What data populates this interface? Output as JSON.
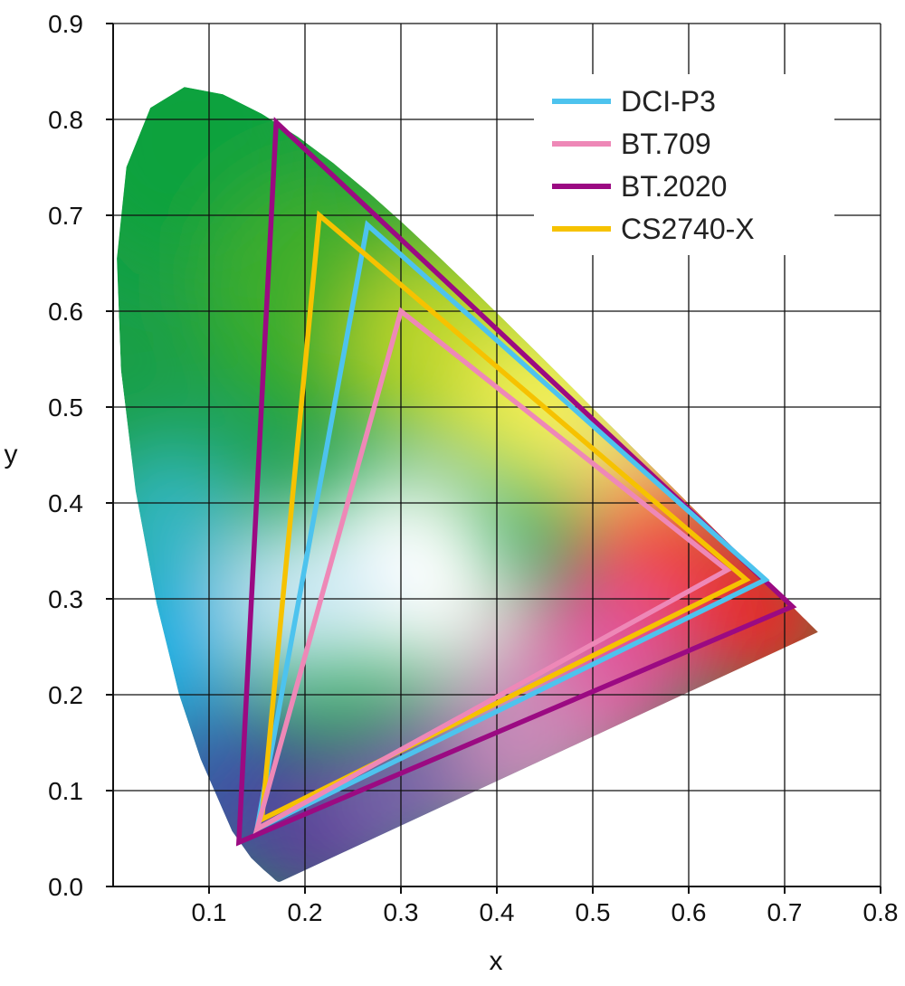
{
  "chart_data": {
    "type": "chromaticity-diagram",
    "xlabel": "x",
    "ylabel": "y",
    "xlim": [
      0,
      0.8
    ],
    "ylim": [
      0,
      0.9
    ],
    "x_ticks": [
      "0.1",
      "0.2",
      "0.3",
      "0.4",
      "0.5",
      "0.6",
      "0.7",
      "0.8"
    ],
    "y_ticks": [
      "0.0",
      "0.1",
      "0.2",
      "0.3",
      "0.4",
      "0.5",
      "0.6",
      "0.7",
      "0.8",
      "0.9"
    ],
    "grid": true,
    "legend_position": "top-right",
    "spectral_locus": [
      [
        0.1741,
        0.005
      ],
      [
        0.1738,
        0.0049
      ],
      [
        0.1736,
        0.0049
      ],
      [
        0.1733,
        0.0048
      ],
      [
        0.1726,
        0.0048
      ],
      [
        0.1714,
        0.0051
      ],
      [
        0.1689,
        0.0069
      ],
      [
        0.1644,
        0.0109
      ],
      [
        0.1566,
        0.0177
      ],
      [
        0.144,
        0.0297
      ],
      [
        0.1241,
        0.0578
      ],
      [
        0.0913,
        0.1327
      ],
      [
        0.0687,
        0.2007
      ],
      [
        0.0454,
        0.295
      ],
      [
        0.0235,
        0.4127
      ],
      [
        0.0082,
        0.5384
      ],
      [
        0.0039,
        0.6548
      ],
      [
        0.0139,
        0.7502
      ],
      [
        0.0389,
        0.812
      ],
      [
        0.0743,
        0.8338
      ],
      [
        0.1142,
        0.8262
      ],
      [
        0.1547,
        0.8059
      ],
      [
        0.1929,
        0.7816
      ],
      [
        0.2296,
        0.7543
      ],
      [
        0.2658,
        0.7243
      ],
      [
        0.3016,
        0.6923
      ],
      [
        0.3373,
        0.6589
      ],
      [
        0.3731,
        0.6245
      ],
      [
        0.4087,
        0.5896
      ],
      [
        0.4441,
        0.5547
      ],
      [
        0.4788,
        0.5202
      ],
      [
        0.5125,
        0.4866
      ],
      [
        0.5448,
        0.4544
      ],
      [
        0.5752,
        0.4242
      ],
      [
        0.6029,
        0.3965
      ],
      [
        0.627,
        0.3725
      ],
      [
        0.6482,
        0.3514
      ],
      [
        0.6658,
        0.334
      ],
      [
        0.6801,
        0.3197
      ],
      [
        0.6915,
        0.3083
      ],
      [
        0.7006,
        0.2993
      ],
      [
        0.7079,
        0.292
      ],
      [
        0.714,
        0.2859
      ],
      [
        0.719,
        0.2809
      ],
      [
        0.723,
        0.277
      ],
      [
        0.726,
        0.274
      ],
      [
        0.7283,
        0.2717
      ],
      [
        0.73,
        0.27
      ],
      [
        0.7347,
        0.2653
      ]
    ],
    "series": [
      {
        "name": "DCI-P3",
        "color": "#4dc3ee",
        "points": [
          [
            0.68,
            0.32
          ],
          [
            0.265,
            0.69
          ],
          [
            0.15,
            0.06
          ]
        ]
      },
      {
        "name": "BT.709",
        "color": "#ee88b7",
        "points": [
          [
            0.64,
            0.33
          ],
          [
            0.3,
            0.6
          ],
          [
            0.15,
            0.06
          ]
        ]
      },
      {
        "name": "BT.2020",
        "color": "#9b0a82",
        "points": [
          [
            0.708,
            0.292
          ],
          [
            0.17,
            0.797
          ],
          [
            0.131,
            0.046
          ]
        ]
      },
      {
        "name": "CS2740-X",
        "color": "#f6c200",
        "points": [
          [
            0.66,
            0.32
          ],
          [
            0.215,
            0.7
          ],
          [
            0.155,
            0.07
          ]
        ]
      }
    ]
  }
}
